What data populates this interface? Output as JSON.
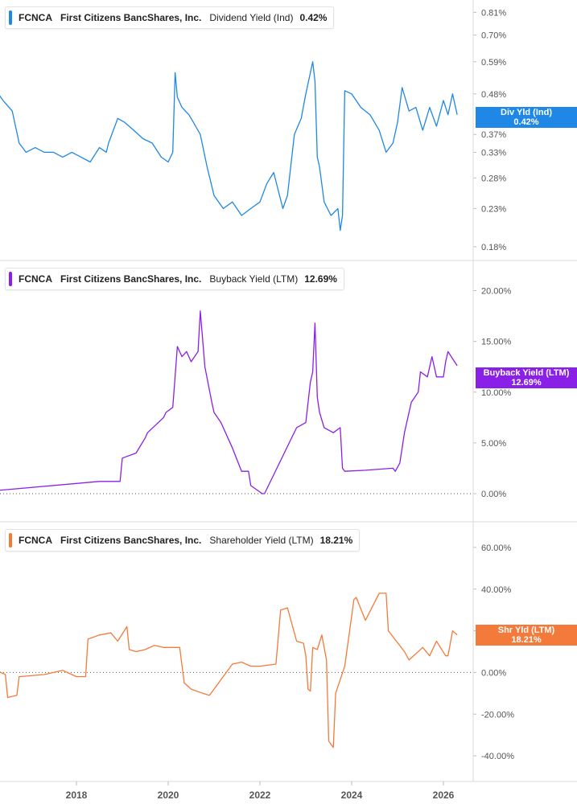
{
  "colors": {
    "dividend": "#1f87e5",
    "buyback": "#8a1fe8",
    "shareholder": "#f37a3a",
    "axis_text": "#555555",
    "divider": "#d9d9d9"
  },
  "x_axis": {
    "ticks": [
      "2018",
      "2020",
      "2022",
      "2024",
      "2026"
    ]
  },
  "chart_data": [
    {
      "type": "line",
      "legend": {
        "ticker": "FCNCA",
        "company": "First Citizens BancShares, Inc.",
        "metric": "Dividend Yield (Ind)",
        "value": "0.42%"
      },
      "badge": {
        "label": "Div Yld (Ind)",
        "value": "0.42%"
      },
      "y_scale": "log",
      "y_ticks": [
        "0.81%",
        "0.70%",
        "0.59%",
        "0.48%",
        "0.37%",
        "0.33%",
        "0.28%",
        "0.23%",
        "0.18%"
      ],
      "ylim": [
        0.17,
        0.85
      ],
      "x": [
        2016.25,
        2016.4,
        2016.6,
        2016.75,
        2016.9,
        2017.1,
        2017.3,
        2017.5,
        2017.7,
        2017.9,
        2018.1,
        2018.3,
        2018.5,
        2018.65,
        2018.7,
        2018.9,
        2019.05,
        2019.25,
        2019.45,
        2019.65,
        2019.85,
        2020.0,
        2020.1,
        2020.15,
        2020.2,
        2020.3,
        2020.45,
        2020.55,
        2020.7,
        2020.85,
        2021.0,
        2021.2,
        2021.4,
        2021.6,
        2021.8,
        2022.0,
        2022.15,
        2022.3,
        2022.5,
        2022.6,
        2022.75,
        2022.9,
        2023.0,
        2023.1,
        2023.15,
        2023.2,
        2023.25,
        2023.3,
        2023.4,
        2023.55,
        2023.7,
        2023.75,
        2023.8,
        2023.85,
        2024.0,
        2024.2,
        2024.4,
        2024.6,
        2024.75,
        2024.9,
        2025.0,
        2025.1,
        2025.25,
        2025.4,
        2025.55,
        2025.7,
        2025.85,
        2026.0,
        2026.1,
        2026.2,
        2026.3
      ],
      "y": [
        0.49,
        0.46,
        0.43,
        0.35,
        0.33,
        0.34,
        0.33,
        0.33,
        0.32,
        0.33,
        0.32,
        0.31,
        0.34,
        0.33,
        0.35,
        0.41,
        0.4,
        0.38,
        0.36,
        0.35,
        0.32,
        0.31,
        0.33,
        0.55,
        0.47,
        0.44,
        0.42,
        0.4,
        0.37,
        0.3,
        0.25,
        0.23,
        0.24,
        0.22,
        0.23,
        0.24,
        0.27,
        0.29,
        0.23,
        0.25,
        0.37,
        0.41,
        0.48,
        0.55,
        0.59,
        0.52,
        0.32,
        0.3,
        0.24,
        0.22,
        0.23,
        0.2,
        0.22,
        0.49,
        0.48,
        0.44,
        0.42,
        0.38,
        0.33,
        0.35,
        0.4,
        0.5,
        0.43,
        0.44,
        0.38,
        0.44,
        0.39,
        0.46,
        0.42,
        0.48,
        0.42
      ]
    },
    {
      "type": "line",
      "legend": {
        "ticker": "FCNCA",
        "company": "First Citizens BancShares, Inc.",
        "metric": "Buyback Yield (LTM)",
        "value": "12.69%"
      },
      "badge": {
        "label": "Buyback Yield (LTM)",
        "value": "12.69%"
      },
      "y_scale": "linear",
      "y_ticks": [
        "20.00%",
        "15.00%",
        "10.00%",
        "5.00%",
        "0.00%"
      ],
      "ylim": [
        -2.3,
        22.5
      ],
      "x": [
        2016.25,
        2018.5,
        2018.95,
        2019.0,
        2019.3,
        2019.5,
        2019.55,
        2019.9,
        2019.95,
        2020.1,
        2020.2,
        2020.3,
        2020.4,
        2020.5,
        2020.65,
        2020.7,
        2020.8,
        2020.95,
        2021.0,
        2021.15,
        2021.4,
        2021.6,
        2021.75,
        2021.8,
        2022.05,
        2022.1,
        2022.8,
        2023.0,
        2023.1,
        2023.15,
        2023.2,
        2023.25,
        2023.3,
        2023.4,
        2023.6,
        2023.75,
        2023.8,
        2023.85,
        2024.3,
        2024.9,
        2024.95,
        2025.05,
        2025.15,
        2025.3,
        2025.45,
        2025.5,
        2025.65,
        2025.75,
        2025.85,
        2026.0,
        2026.05,
        2026.1,
        2026.2,
        2026.3
      ],
      "y": [
        0.3,
        1.2,
        1.2,
        3.5,
        4.0,
        5.5,
        6.0,
        7.5,
        8.0,
        8.5,
        14.5,
        13.5,
        14.0,
        13.0,
        14.0,
        18.0,
        12.5,
        9.0,
        8.0,
        7.0,
        4.5,
        2.2,
        2.2,
        0.8,
        0.0,
        0.0,
        6.5,
        7.0,
        11.0,
        12.0,
        16.8,
        9.5,
        8.0,
        6.5,
        6.0,
        6.5,
        2.5,
        2.2,
        2.3,
        2.5,
        2.2,
        3.0,
        6.0,
        9.0,
        10.0,
        12.0,
        11.5,
        13.5,
        11.5,
        11.5,
        13.0,
        14.0,
        13.3,
        12.6
      ]
    },
    {
      "type": "line",
      "legend": {
        "ticker": "FCNCA",
        "company": "First Citizens BancShares, Inc.",
        "metric": "Shareholder Yield (LTM)",
        "value": "18.21%"
      },
      "badge": {
        "label": "Shr Yld (LTM)",
        "value": "18.21%"
      },
      "y_scale": "linear",
      "y_ticks": [
        "60.00%",
        "40.00%",
        "20.00%",
        "0.00%",
        "-20.00%",
        "-40.00%"
      ],
      "ylim": [
        -50,
        70
      ],
      "x": [
        2016.25,
        2016.45,
        2016.5,
        2016.7,
        2016.75,
        2017.3,
        2017.7,
        2018.0,
        2018.2,
        2018.25,
        2018.5,
        2018.75,
        2018.9,
        2019.1,
        2019.15,
        2019.3,
        2019.5,
        2019.7,
        2019.9,
        2020.25,
        2020.35,
        2020.5,
        2020.75,
        2020.9,
        2021.1,
        2021.4,
        2021.6,
        2021.8,
        2022.0,
        2022.35,
        2022.45,
        2022.6,
        2022.65,
        2022.8,
        2022.95,
        2023.0,
        2023.05,
        2023.1,
        2023.15,
        2023.25,
        2023.35,
        2023.45,
        2023.5,
        2023.6,
        2023.65,
        2023.85,
        2024.05,
        2024.1,
        2024.3,
        2024.6,
        2024.75,
        2024.8,
        2025.15,
        2025.25,
        2025.55,
        2025.7,
        2025.85,
        2026.05,
        2026.1,
        2026.2,
        2026.3
      ],
      "y": [
        1,
        -1,
        -12,
        -11,
        -2,
        -1,
        1,
        -2,
        -2,
        16,
        18,
        19,
        15,
        22,
        11,
        10,
        11,
        13,
        12,
        12,
        -5,
        -8,
        -10,
        -11,
        -5,
        4,
        5,
        3,
        3,
        4,
        30,
        31,
        27,
        15,
        14,
        8,
        -8,
        -9,
        12,
        11,
        18,
        6,
        -33,
        -36,
        -10,
        3,
        35,
        36,
        25,
        38,
        38,
        20,
        10,
        6,
        12,
        8,
        15,
        8,
        8,
        20,
        18
      ]
    }
  ]
}
